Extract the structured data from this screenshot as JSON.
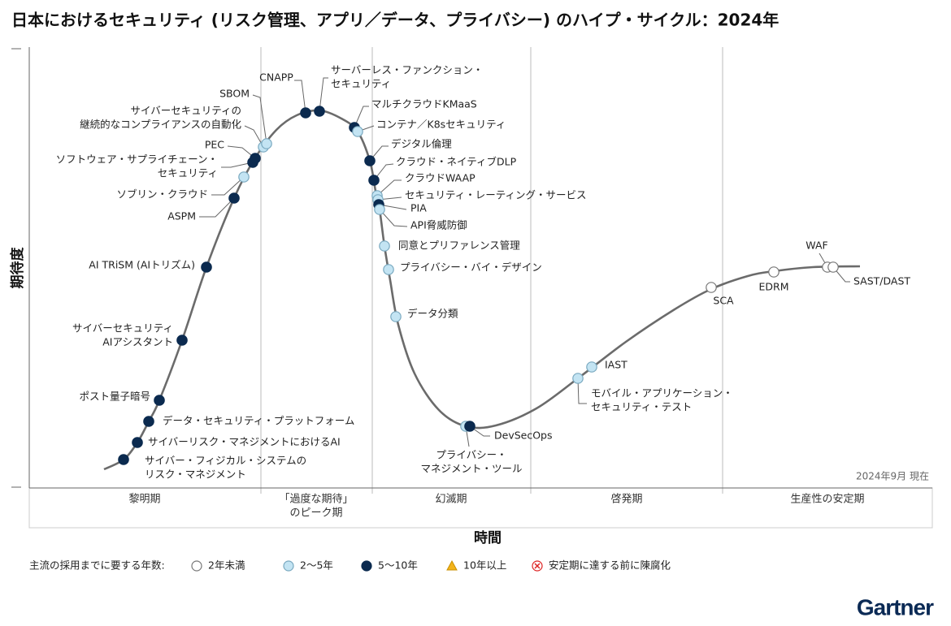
{
  "title": "日本におけるセキュリティ (リスク管理、アプリ／データ、プライバシー) のハイプ・サイクル：2024年",
  "axes": {
    "y": "期待度",
    "x": "時間"
  },
  "phases": [
    {
      "lines": [
        "黎明期"
      ]
    },
    {
      "lines": [
        "「過度な期待」",
        "のピーク期"
      ]
    },
    {
      "lines": [
        "幻滅期"
      ]
    },
    {
      "lines": [
        "啓発期"
      ]
    },
    {
      "lines": [
        "生産性の安定期"
      ]
    }
  ],
  "as_of": "2024年9月 現在",
  "legend": {
    "title": "主流の採用までに要する年数:",
    "items": [
      {
        "label": "2年未満"
      },
      {
        "label": "2～5年"
      },
      {
        "label": "5～10年"
      },
      {
        "label": "10年以上"
      },
      {
        "label": "安定期に達する前に陳腐化"
      }
    ]
  },
  "nodes": [
    {
      "lines": [
        "サイバー・フィジカル・システムの",
        "リスク・マネジメント"
      ],
      "years": "5～10年"
    },
    {
      "lines": [
        "サイバーリスク・マネジメントにおけるAI"
      ],
      "years": "5～10年"
    },
    {
      "lines": [
        "データ・セキュリティ・プラットフォーム"
      ],
      "years": "5～10年"
    },
    {
      "lines": [
        "ポスト量子暗号"
      ],
      "years": "5～10年"
    },
    {
      "lines": [
        "サイバーセキュリティ",
        "AIアシスタント"
      ],
      "years": "5～10年"
    },
    {
      "lines": [
        "AI TRiSM (AIトリズム)"
      ],
      "years": "5～10年"
    },
    {
      "lines": [
        "ASPM"
      ],
      "years": "5～10年"
    },
    {
      "lines": [
        "ソブリン・クラウド"
      ],
      "years": "2～5年"
    },
    {
      "lines": [
        "ソフトウェア・サプライチェーン・",
        "セキュリティ"
      ],
      "years": "5～10年"
    },
    {
      "lines": [
        "PEC"
      ],
      "years": "5～10年"
    },
    {
      "lines": [
        "サイバーセキュリティの",
        "継続的なコンプライアンスの自動化"
      ],
      "years": "2～5年"
    },
    {
      "lines": [
        "SBOM"
      ],
      "years": "2～5年"
    },
    {
      "lines": [
        "CNAPP"
      ],
      "years": "5～10年"
    },
    {
      "lines": [
        "サーバーレス・ファンクション・",
        "セキュリティ"
      ],
      "years": "5～10年"
    },
    {
      "lines": [
        "マルチクラウドKMaaS"
      ],
      "years": "5～10年"
    },
    {
      "lines": [
        "コンテナ／K8sセキュリティ"
      ],
      "years": "2～5年"
    },
    {
      "lines": [
        "デジタル倫理"
      ],
      "years": "5～10年"
    },
    {
      "lines": [
        "クラウド・ネイティブDLP"
      ],
      "years": "5～10年"
    },
    {
      "lines": [
        "クラウドWAAP"
      ],
      "years": "2～5年"
    },
    {
      "lines": [
        "セキュリティ・レーティング・サービス"
      ],
      "years": "2～5年"
    },
    {
      "lines": [
        "PIA"
      ],
      "years": "5～10年"
    },
    {
      "lines": [
        "API脅威防御"
      ],
      "years": "2～5年"
    },
    {
      "lines": [
        "同意とプリファレンス管理"
      ],
      "years": "2～5年"
    },
    {
      "lines": [
        "プライバシー・バイ・デザイン"
      ],
      "years": "2～5年"
    },
    {
      "lines": [
        "データ分類"
      ],
      "years": "2～5年"
    },
    {
      "lines": [
        "プライバシー・",
        "マネジメント・ツール"
      ],
      "years": "2～5年"
    },
    {
      "lines": [
        "DevSecOps"
      ],
      "years": "5～10年"
    },
    {
      "lines": [
        "モバイル・アプリケーション・",
        "セキュリティ・テスト"
      ],
      "years": "2～5年"
    },
    {
      "lines": [
        "IAST"
      ],
      "years": "2～5年"
    },
    {
      "lines": [
        "SCA"
      ],
      "years": "2年未満"
    },
    {
      "lines": [
        "EDRM"
      ],
      "years": "2年未満"
    },
    {
      "lines": [
        "WAF"
      ],
      "years": "2年未満"
    },
    {
      "lines": [
        "SAST/DAST"
      ],
      "years": "2年未満"
    }
  ],
  "logo": "Gartner"
}
